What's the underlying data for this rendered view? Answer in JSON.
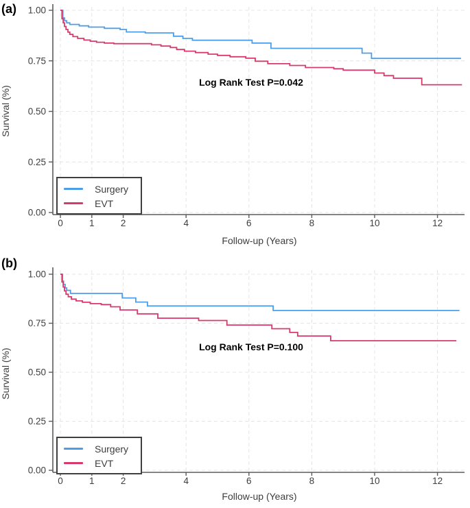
{
  "figure": {
    "background": "#ffffff"
  },
  "colors": {
    "axis": "#5a5a5a",
    "grid": "#e4e4e4",
    "tick_text": "#3d3d3d",
    "annotation_text": "#000000"
  },
  "chart_data": [
    {
      "panel_label": "(a)",
      "type": "line",
      "subtype": "kaplan-meier-step",
      "title": "",
      "xlabel": "Follow-up (Years)",
      "ylabel": "Survival (%)",
      "annotation": "Log Rank Test P=0.042",
      "xlim": [
        0,
        12.9
      ],
      "ylim": [
        0,
        1.0
      ],
      "grid": true,
      "legend_position": "bottom-left",
      "xticks": [
        {
          "value": 0,
          "label": "0"
        },
        {
          "value": 1,
          "label": "1"
        },
        {
          "value": 2,
          "label": "2"
        },
        {
          "value": 4,
          "label": "4"
        },
        {
          "value": 6,
          "label": "6"
        },
        {
          "value": 8,
          "label": "8"
        },
        {
          "value": 10,
          "label": "10"
        },
        {
          "value": 12,
          "label": "12"
        }
      ],
      "yticks": [
        {
          "value": 0.0,
          "label": "0.00"
        },
        {
          "value": 0.25,
          "label": "0.25"
        },
        {
          "value": 0.5,
          "label": "0.50"
        },
        {
          "value": 0.75,
          "label": "0.75"
        },
        {
          "value": 1.0,
          "label": "1.00"
        }
      ],
      "series": [
        {
          "name": "Surgery",
          "color": "#4d9ee9",
          "steps": [
            [
              0,
              1.0
            ],
            [
              0.08,
              0.962
            ],
            [
              0.13,
              0.948
            ],
            [
              0.2,
              0.938
            ],
            [
              0.3,
              0.93
            ],
            [
              0.6,
              0.923
            ],
            [
              0.9,
              0.917
            ],
            [
              1.4,
              0.911
            ],
            [
              1.9,
              0.905
            ],
            [
              2.1,
              0.893
            ],
            [
              2.7,
              0.888
            ],
            [
              3.6,
              0.872
            ],
            [
              3.9,
              0.861
            ],
            [
              4.2,
              0.852
            ],
            [
              6.1,
              0.838
            ],
            [
              6.7,
              0.812
            ],
            [
              9.6,
              0.788
            ],
            [
              9.9,
              0.762
            ],
            [
              12.75,
              0.762
            ]
          ]
        },
        {
          "name": "EVT",
          "color": "#d63a6a",
          "steps": [
            [
              0,
              1.0
            ],
            [
              0.05,
              0.958
            ],
            [
              0.09,
              0.938
            ],
            [
              0.13,
              0.92
            ],
            [
              0.18,
              0.905
            ],
            [
              0.24,
              0.892
            ],
            [
              0.3,
              0.881
            ],
            [
              0.4,
              0.87
            ],
            [
              0.55,
              0.861
            ],
            [
              0.75,
              0.853
            ],
            [
              0.95,
              0.847
            ],
            [
              1.15,
              0.842
            ],
            [
              1.4,
              0.838
            ],
            [
              1.7,
              0.835
            ],
            [
              2.9,
              0.829
            ],
            [
              3.2,
              0.823
            ],
            [
              3.5,
              0.816
            ],
            [
              3.7,
              0.806
            ],
            [
              3.95,
              0.798
            ],
            [
              4.3,
              0.791
            ],
            [
              4.7,
              0.783
            ],
            [
              5.0,
              0.777
            ],
            [
              5.4,
              0.77
            ],
            [
              5.9,
              0.763
            ],
            [
              6.2,
              0.748
            ],
            [
              6.6,
              0.736
            ],
            [
              7.3,
              0.727
            ],
            [
              7.8,
              0.717
            ],
            [
              8.7,
              0.711
            ],
            [
              9.0,
              0.704
            ],
            [
              10.0,
              0.69
            ],
            [
              10.3,
              0.677
            ],
            [
              10.6,
              0.664
            ],
            [
              11.5,
              0.632
            ],
            [
              12.78,
              0.632
            ]
          ]
        }
      ]
    },
    {
      "panel_label": "(b)",
      "type": "line",
      "subtype": "kaplan-meier-step",
      "title": "",
      "xlabel": "Follow-up (Years)",
      "ylabel": "Survival (%)",
      "annotation": "Log Rank Test P=0.100",
      "xlim": [
        0,
        12.9
      ],
      "ylim": [
        0,
        1.0
      ],
      "grid": true,
      "legend_position": "bottom-left",
      "xticks": [
        {
          "value": 0,
          "label": "0"
        },
        {
          "value": 1,
          "label": "1"
        },
        {
          "value": 2,
          "label": "2"
        },
        {
          "value": 4,
          "label": "4"
        },
        {
          "value": 6,
          "label": "6"
        },
        {
          "value": 8,
          "label": "8"
        },
        {
          "value": 10,
          "label": "10"
        },
        {
          "value": 12,
          "label": "12"
        }
      ],
      "yticks": [
        {
          "value": 0.0,
          "label": "0.00"
        },
        {
          "value": 0.25,
          "label": "0.25"
        },
        {
          "value": 0.5,
          "label": "0.50"
        },
        {
          "value": 0.75,
          "label": "0.75"
        },
        {
          "value": 1.0,
          "label": "1.00"
        }
      ],
      "series": [
        {
          "name": "Surgery",
          "color": "#4d9ee9",
          "steps": [
            [
              0,
              1.0
            ],
            [
              0.07,
              0.965
            ],
            [
              0.1,
              0.948
            ],
            [
              0.15,
              0.93
            ],
            [
              0.2,
              0.918
            ],
            [
              0.32,
              0.902
            ],
            [
              1.97,
              0.879
            ],
            [
              2.4,
              0.858
            ],
            [
              2.77,
              0.838
            ],
            [
              6.77,
              0.815
            ],
            [
              12.7,
              0.815
            ]
          ]
        },
        {
          "name": "EVT",
          "color": "#d63a6a",
          "steps": [
            [
              0,
              1.0
            ],
            [
              0.05,
              0.96
            ],
            [
              0.09,
              0.935
            ],
            [
              0.13,
              0.915
            ],
            [
              0.18,
              0.898
            ],
            [
              0.25,
              0.885
            ],
            [
              0.35,
              0.873
            ],
            [
              0.5,
              0.864
            ],
            [
              0.7,
              0.857
            ],
            [
              0.95,
              0.85
            ],
            [
              1.3,
              0.845
            ],
            [
              1.6,
              0.834
            ],
            [
              1.9,
              0.818
            ],
            [
              2.45,
              0.798
            ],
            [
              3.1,
              0.776
            ],
            [
              4.4,
              0.764
            ],
            [
              5.3,
              0.741
            ],
            [
              6.73,
              0.722
            ],
            [
              7.3,
              0.703
            ],
            [
              7.55,
              0.685
            ],
            [
              8.6,
              0.661
            ],
            [
              12.6,
              0.661
            ]
          ]
        }
      ]
    }
  ]
}
